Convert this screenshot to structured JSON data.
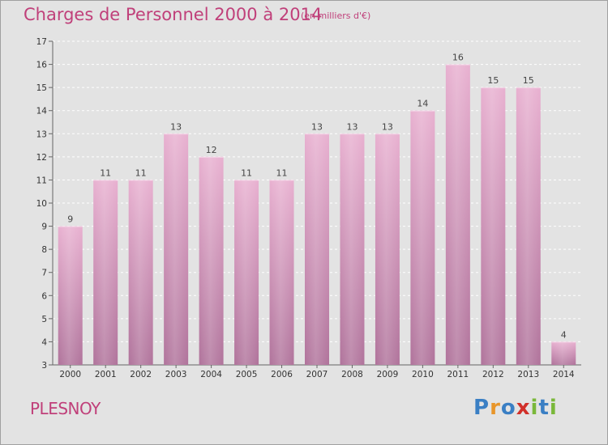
{
  "chart_data": {
    "type": "bar",
    "title": "Charges de Personnel 2000 à 2014",
    "subtitle": "(en milliers d'€)",
    "categories": [
      "2000",
      "2001",
      "2002",
      "2003",
      "2004",
      "2005",
      "2006",
      "2007",
      "2008",
      "2009",
      "2010",
      "2011",
      "2012",
      "2013",
      "2014"
    ],
    "values": [
      9,
      11,
      11,
      13,
      12,
      11,
      11,
      13,
      13,
      13,
      14,
      16,
      15,
      15,
      4
    ],
    "ylim": [
      3,
      17
    ],
    "yticks": [
      3,
      4,
      5,
      6,
      7,
      8,
      9,
      10,
      11,
      12,
      13,
      14,
      15,
      16,
      17
    ],
    "grid": true,
    "bar_color": "#d98fba",
    "title_color": "#c0407a",
    "background": "#e3e3e3"
  },
  "commune": "PLESNOY",
  "logo": {
    "letters": [
      "P",
      "r",
      "o",
      "x",
      "i",
      "t",
      "i"
    ],
    "colors": [
      "#3a7fc4",
      "#e8962a",
      "#3a7fc4",
      "#d1302a",
      "#7ab83a",
      "#3a7fc4",
      "#7ab83a"
    ]
  }
}
